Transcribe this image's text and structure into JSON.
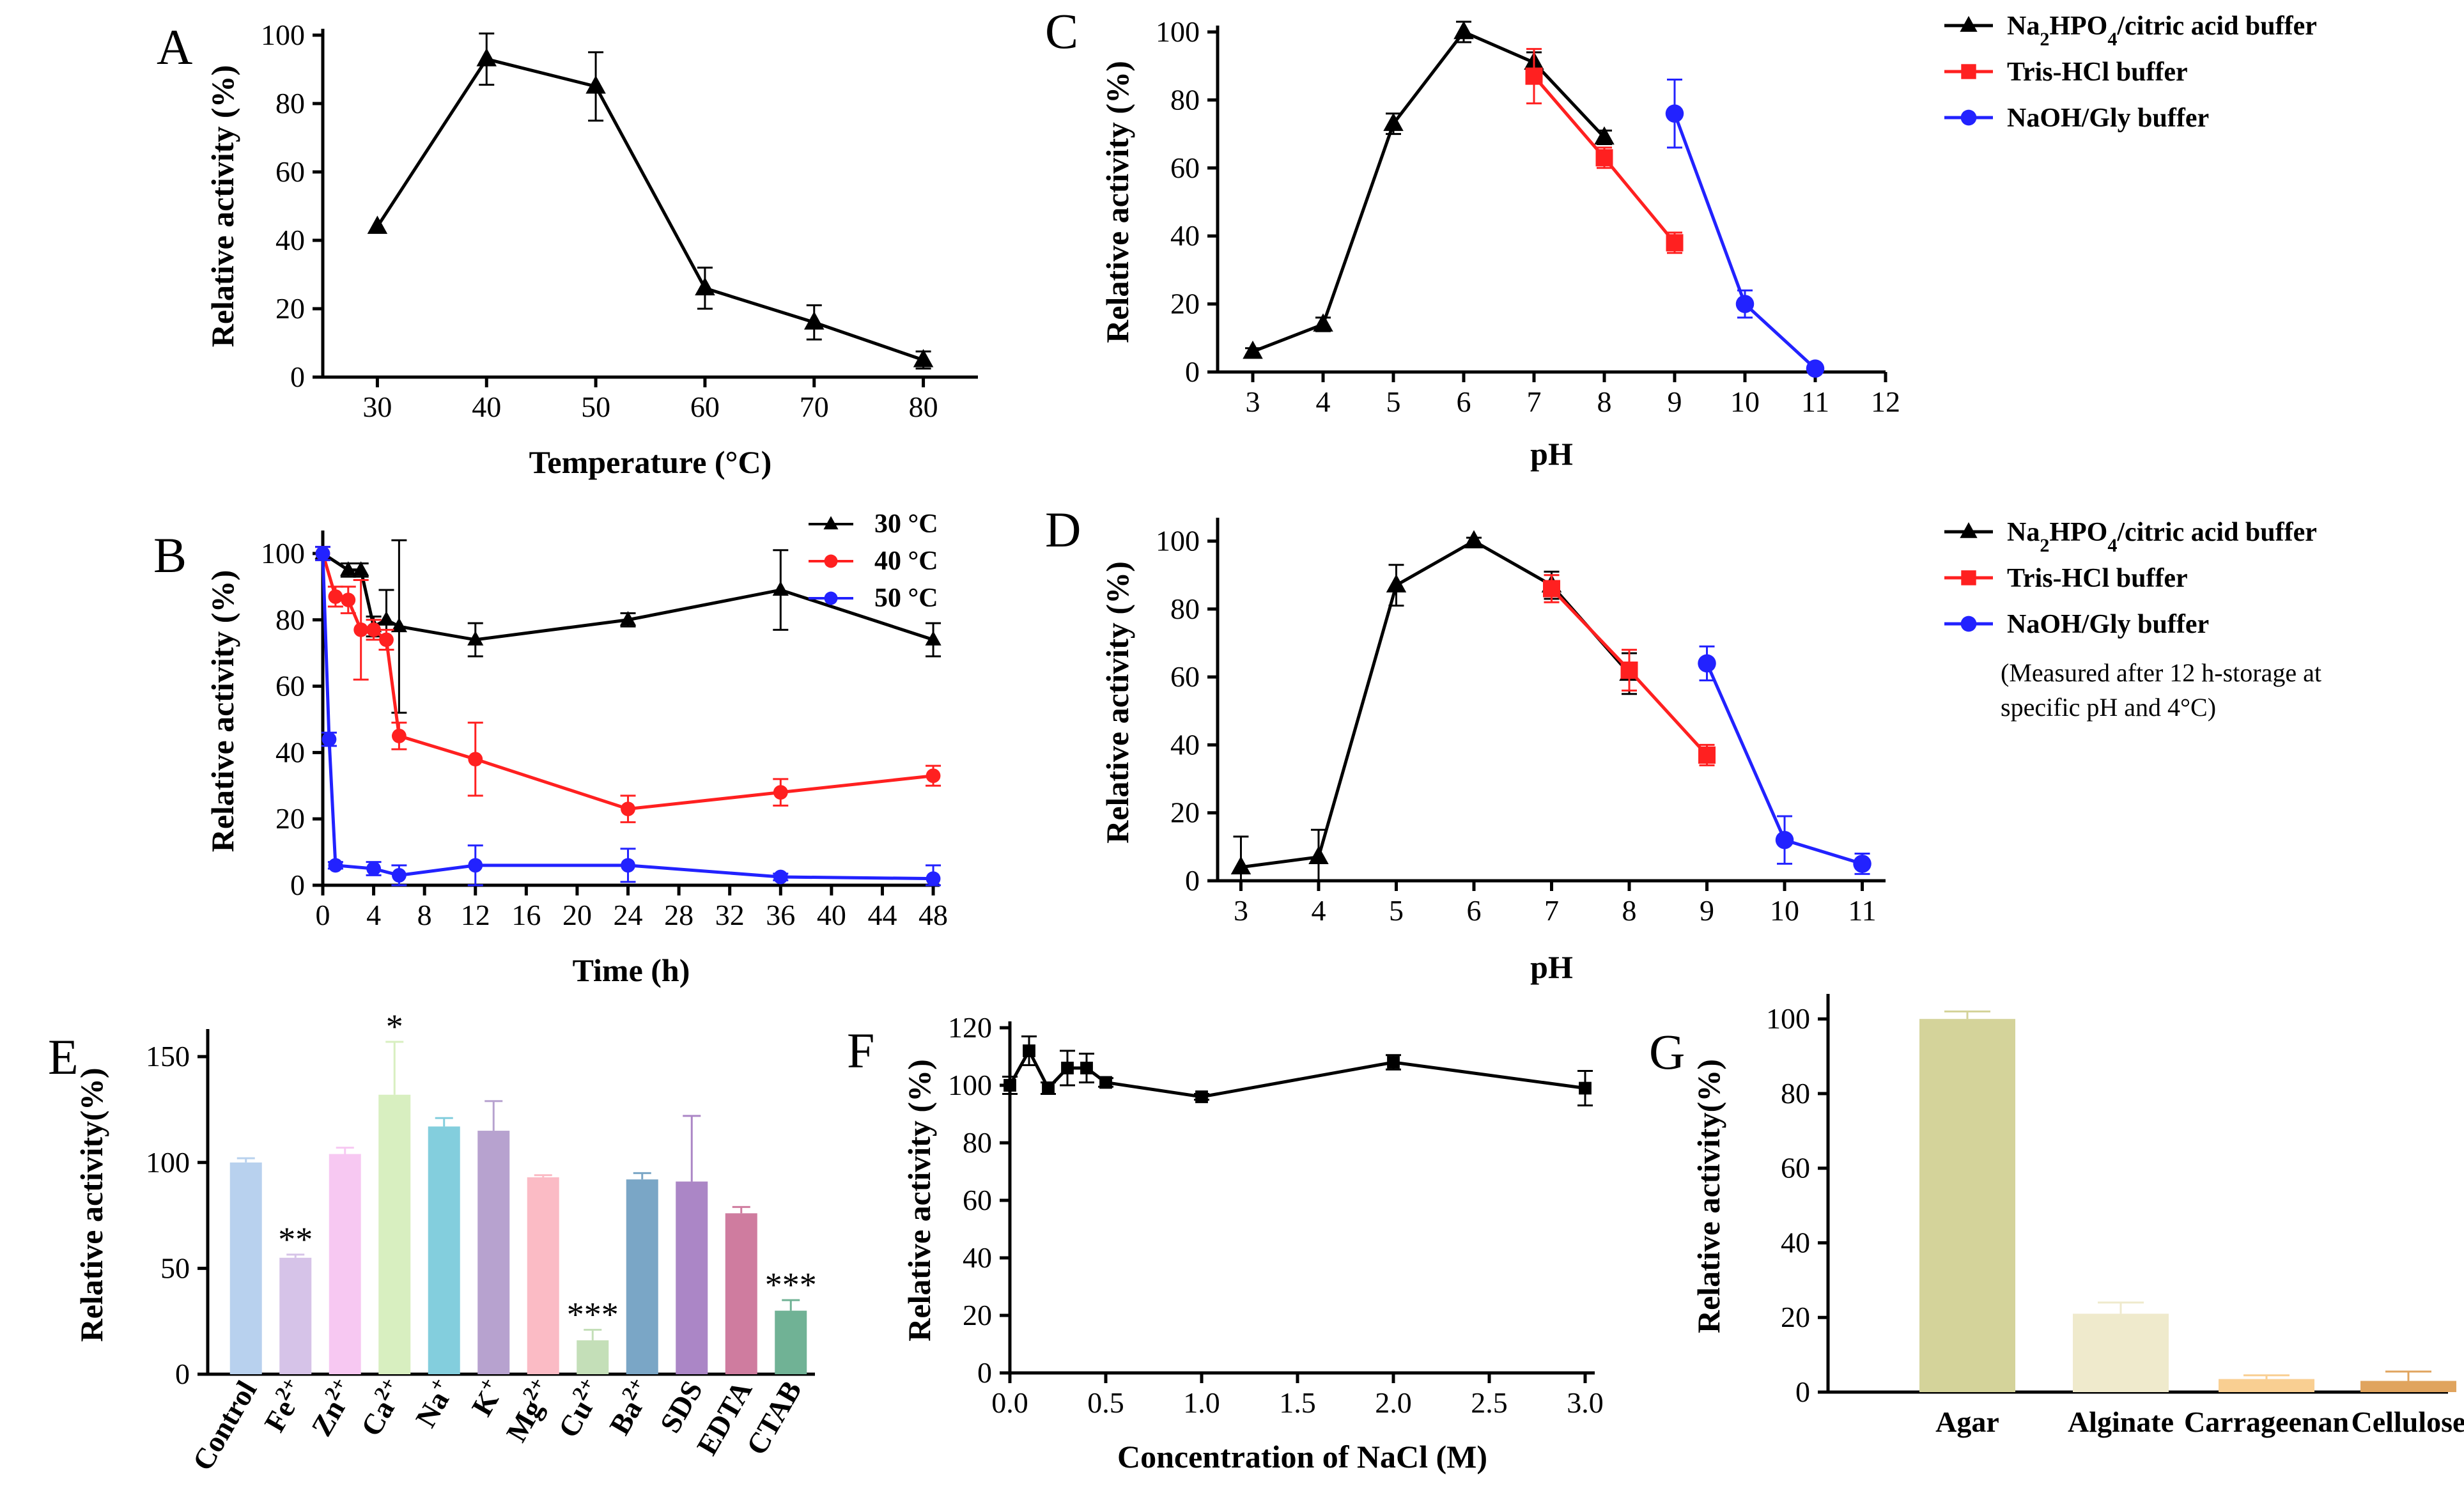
{
  "chart_data": [
    {
      "panel": "A",
      "type": "line",
      "xlabel": "Temperature (°C)",
      "ylabel": "Relative activity (%)",
      "xlim": [
        25,
        85
      ],
      "ylim": [
        0,
        100
      ],
      "xticks": [
        30,
        40,
        50,
        60,
        70,
        80
      ],
      "yticks": [
        0,
        20,
        40,
        60,
        80,
        100
      ],
      "series": [
        {
          "name": "activity",
          "color": "#000000",
          "marker": "triangle",
          "x": [
            30,
            40,
            50,
            60,
            70,
            80
          ],
          "y": [
            44,
            93,
            85,
            26,
            16,
            5
          ],
          "err": [
            0,
            7.5,
            10,
            6,
            5,
            2.5
          ]
        }
      ]
    },
    {
      "panel": "B",
      "type": "line",
      "xlabel": "Time (h)",
      "ylabel": "Relative activity (%)",
      "xlim": [
        0,
        48.5
      ],
      "ylim": [
        0,
        105
      ],
      "xticks": [
        0,
        4,
        8,
        12,
        16,
        20,
        24,
        28,
        32,
        36,
        40,
        44,
        48
      ],
      "yticks": [
        0,
        20,
        40,
        60,
        80,
        100
      ],
      "legend_position": "top-right",
      "series": [
        {
          "name": "30 °C",
          "color": "#000000",
          "marker": "triangle",
          "x": [
            0,
            2,
            3,
            4,
            5,
            6,
            12,
            24,
            36,
            48
          ],
          "y": [
            100,
            95,
            95,
            78,
            80,
            78,
            74,
            80,
            89,
            74
          ],
          "err": [
            2,
            2,
            2,
            3,
            9,
            26,
            5,
            2,
            12,
            5
          ]
        },
        {
          "name": "40 °C",
          "color": "#ff2020",
          "marker": "circle",
          "x": [
            0,
            1,
            2,
            3,
            4,
            5,
            6,
            12,
            24,
            36,
            48
          ],
          "y": [
            100,
            87,
            86,
            77,
            77,
            74,
            45,
            38,
            23,
            28,
            33
          ],
          "err": [
            2,
            3,
            4,
            15,
            3,
            3,
            4,
            11,
            4,
            4,
            3
          ]
        },
        {
          "name": "50 °C",
          "color": "#2222ff",
          "marker": "circle",
          "x": [
            0,
            0.5,
            1,
            4,
            6,
            12,
            24,
            36,
            48
          ],
          "y": [
            100,
            44,
            6,
            5,
            3,
            6,
            6,
            2.5,
            2
          ],
          "err": [
            2,
            2,
            1,
            2,
            3,
            6,
            5,
            1,
            4
          ]
        }
      ]
    },
    {
      "panel": "C",
      "type": "line",
      "xlabel": "pH",
      "ylabel": "Relative activity (%)",
      "xlim": [
        2.5,
        12
      ],
      "ylim": [
        0,
        100
      ],
      "xticks": [
        3,
        4,
        5,
        6,
        7,
        8,
        9,
        10,
        11,
        12
      ],
      "yticks": [
        0,
        20,
        40,
        60,
        80,
        100
      ],
      "legend_position": "top-right",
      "series": [
        {
          "name": "Na2HPO4/citric acid buffer",
          "color": "#000000",
          "marker": "triangle",
          "x": [
            3,
            4,
            5,
            6,
            7,
            8
          ],
          "y": [
            6,
            14,
            73,
            100,
            91,
            69
          ],
          "err": [
            1,
            2,
            3,
            3,
            3,
            2
          ]
        },
        {
          "name": "Tris-HCl buffer",
          "color": "#ff2020",
          "marker": "square",
          "x": [
            7,
            8,
            9
          ],
          "y": [
            87,
            63,
            38
          ],
          "err": [
            8,
            3,
            3
          ]
        },
        {
          "name": "NaOH/Gly buffer",
          "color": "#2222ff",
          "marker": "circle",
          "x": [
            9,
            10,
            11
          ],
          "y": [
            76,
            20,
            1
          ],
          "err": [
            10,
            4,
            1
          ]
        }
      ]
    },
    {
      "panel": "D",
      "type": "line",
      "xlabel": "pH",
      "ylabel": "Relative activity (%)",
      "xlim": [
        2.7,
        11.3
      ],
      "ylim": [
        0,
        105
      ],
      "xticks": [
        3,
        4,
        5,
        6,
        7,
        8,
        9,
        10,
        11
      ],
      "yticks": [
        0,
        20,
        40,
        60,
        80,
        100
      ],
      "legend_position": "top-right",
      "annotation": [
        "(Measured after 12 h-storage at",
        "specific pH and 4°C)"
      ],
      "series": [
        {
          "name": "Na2HPO4/citric acid buffer",
          "color": "#000000",
          "marker": "triangle",
          "x": [
            3,
            4,
            5,
            6,
            7,
            8
          ],
          "y": [
            4,
            7,
            87,
            100,
            87,
            61
          ],
          "err": [
            9,
            8,
            6,
            1,
            4,
            6
          ]
        },
        {
          "name": "Tris-HCl buffer",
          "color": "#ff2020",
          "marker": "square",
          "x": [
            7,
            8,
            9
          ],
          "y": [
            86,
            62,
            37
          ],
          "err": [
            4,
            6,
            3
          ]
        },
        {
          "name": "NaOH/Gly buffer",
          "color": "#2222ff",
          "marker": "circle",
          "x": [
            9,
            10,
            11
          ],
          "y": [
            64,
            12,
            5
          ],
          "err": [
            5,
            7,
            3
          ]
        }
      ]
    },
    {
      "panel": "E",
      "type": "bar",
      "ylabel": "Relative activity(%)",
      "ylim": [
        0,
        160
      ],
      "yticks": [
        0,
        50,
        100,
        150
      ],
      "categories": [
        "Control",
        "Fe2+",
        "Zn2+",
        "Ca2+",
        "Na+",
        "K+",
        "Mg2+",
        "Cu2+",
        "Ba2+",
        "SDS",
        "EDTA",
        "CTAB"
      ],
      "category_labels": [
        {
          "base": "Control",
          "sup": ""
        },
        {
          "base": "Fe",
          "sup": "2+"
        },
        {
          "base": "Zn",
          "sup": "2+"
        },
        {
          "base": "Ca",
          "sup": "2+"
        },
        {
          "base": "Na",
          "sup": "+"
        },
        {
          "base": "K",
          "sup": "+"
        },
        {
          "base": "Mg",
          "sup": "2+"
        },
        {
          "base": "Cu",
          "sup": "2+"
        },
        {
          "base": "Ba",
          "sup": "2+"
        },
        {
          "base": "SDS",
          "sup": ""
        },
        {
          "base": "EDTA",
          "sup": ""
        },
        {
          "base": "CTAB",
          "sup": ""
        }
      ],
      "values": [
        100,
        55,
        104,
        132,
        117,
        115,
        93,
        16,
        92,
        91,
        76,
        30
      ],
      "err": [
        2,
        1.5,
        3,
        25,
        4,
        14,
        1,
        5,
        3,
        31,
        3,
        5
      ],
      "colors": [
        "#b8d1ee",
        "#d6c3e8",
        "#f7c8f2",
        "#d8efc0",
        "#83cedd",
        "#b7a2cf",
        "#fbbbc5",
        "#c4dfb8",
        "#7aa6c6",
        "#ab86c6",
        "#cf7c9f",
        "#70b295"
      ],
      "significance": [
        "",
        "**",
        "",
        "*",
        "",
        "",
        "",
        "***",
        "",
        "",
        "",
        "***"
      ]
    },
    {
      "panel": "F",
      "type": "line",
      "xlabel": "Concentration of NaCl (M)",
      "ylabel": "Relative activity (%)",
      "xlim": [
        0,
        3.05
      ],
      "ylim": [
        0,
        120
      ],
      "xticks": [
        0.0,
        0.5,
        1.0,
        1.5,
        2.0,
        2.5,
        3.0
      ],
      "yticks": [
        0,
        20,
        40,
        60,
        80,
        100,
        120
      ],
      "series": [
        {
          "name": "activity",
          "color": "#000000",
          "marker": "square",
          "x": [
            0,
            0.1,
            0.2,
            0.3,
            0.4,
            0.5,
            1.0,
            2.0,
            3.0
          ],
          "y": [
            100,
            112,
            99,
            106,
            106,
            101,
            96,
            108,
            99
          ],
          "err": [
            3,
            5,
            2,
            6,
            5,
            1.5,
            1,
            2.5,
            6
          ]
        }
      ]
    },
    {
      "panel": "G",
      "type": "bar",
      "ylabel": "Relative activity(%)",
      "ylim": [
        0,
        105
      ],
      "yticks": [
        0,
        20,
        40,
        60,
        80,
        100
      ],
      "categories": [
        "Agar",
        "Alginate",
        "Carrageenan",
        "Cellulose"
      ],
      "values": [
        100,
        21,
        3.5,
        3
      ],
      "err": [
        2,
        3,
        1,
        2.5
      ],
      "colors": [
        "#d4d39a",
        "#efeacc",
        "#f9cf92",
        "#e0a45e"
      ]
    }
  ]
}
